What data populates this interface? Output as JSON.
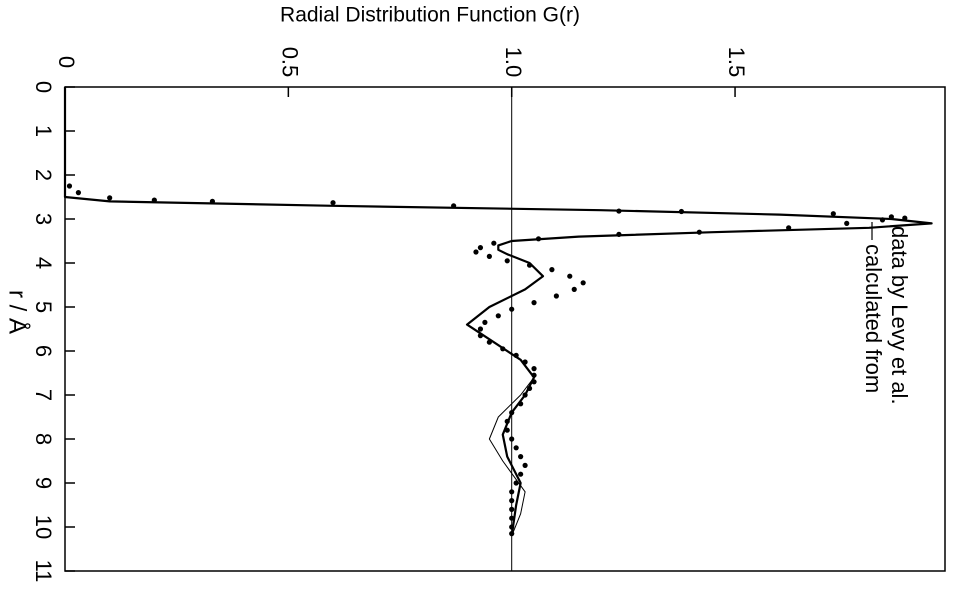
{
  "chart_data": {
    "type": "line",
    "title": "Radial Distribution Function G(r)",
    "xlabel": "r / Å",
    "annotation": [
      "calculated from",
      "data by Levy et al."
    ],
    "xlim": [
      0,
      11
    ],
    "xticks": [
      0,
      1,
      2,
      3,
      4,
      5,
      6,
      7,
      8,
      9,
      10,
      11
    ],
    "ylim": [
      0,
      1.97
    ],
    "yticks": [
      0,
      0.5,
      {
        "value": 1,
        "label": "1.0"
      },
      1.5
    ],
    "reference_line": 1,
    "series": [
      {
        "style": "line",
        "color": "#000000",
        "width": 2.2,
        "x": [
          0,
          2.5,
          2.6,
          2.7,
          2.8,
          2.9,
          3.0,
          3.1,
          3.2,
          3.3,
          3.4,
          3.5,
          3.6,
          3.7,
          3.8,
          4.0,
          4.3,
          4.6,
          5.0,
          5.4,
          5.8,
          6.2,
          6.6,
          7.0,
          7.4,
          7.9,
          8.4,
          9.0,
          9.5,
          10.2
        ],
        "values": [
          0,
          0,
          0.1,
          0.6,
          1.2,
          1.6,
          1.85,
          1.94,
          1.8,
          1.45,
          1.15,
          1.0,
          0.97,
          0.97,
          0.99,
          1.04,
          1.07,
          1.03,
          0.95,
          0.9,
          0.96,
          1.02,
          1.05,
          1.03,
          1.0,
          0.98,
          0.99,
          1.02,
          1.01,
          1.0
        ]
      },
      {
        "style": "line",
        "color": "#000000",
        "width": 1,
        "x": [
          6.6,
          7.0,
          7.5,
          8.0,
          8.5,
          9.2,
          9.7,
          10.2
        ],
        "values": [
          1.05,
          1.02,
          0.97,
          0.95,
          0.98,
          1.03,
          1.02,
          1.0
        ]
      },
      {
        "style": "dots",
        "color": "#000000",
        "x": [
          2.25,
          2.4,
          2.52,
          2.57,
          2.6,
          2.63,
          2.7,
          2.82,
          2.83,
          2.88,
          2.95,
          2.98,
          3.02,
          3.1,
          3.2,
          3.3,
          3.35,
          3.45,
          3.55,
          3.65,
          3.75,
          3.85,
          3.95,
          4.05,
          4.15,
          4.3,
          4.45,
          4.6,
          4.75,
          4.9,
          5.05,
          5.2,
          5.35,
          5.5,
          5.65,
          5.8,
          5.95,
          6.1,
          6.25,
          6.4,
          6.55,
          6.7,
          6.85,
          7.0,
          7.2,
          7.4,
          7.6,
          7.8,
          8.0,
          8.2,
          8.4,
          8.6,
          8.8,
          9.0,
          9.2,
          9.4,
          9.6,
          9.8,
          10.0,
          10.15
        ],
        "values": [
          0.01,
          0.03,
          0.1,
          0.2,
          0.33,
          0.6,
          0.87,
          1.24,
          1.38,
          1.72,
          1.85,
          1.88,
          1.83,
          1.75,
          1.62,
          1.42,
          1.24,
          1.06,
          0.96,
          0.93,
          0.92,
          0.95,
          0.99,
          1.04,
          1.09,
          1.13,
          1.16,
          1.14,
          1.1,
          1.05,
          1.0,
          0.97,
          0.94,
          0.93,
          0.93,
          0.95,
          0.98,
          1.01,
          1.03,
          1.05,
          1.05,
          1.05,
          1.04,
          1.03,
          1.02,
          1.0,
          0.99,
          0.99,
          1.0,
          1.01,
          1.02,
          1.03,
          1.02,
          1.01,
          1.0,
          1.0,
          1.0,
          1.0,
          1.0,
          1.0
        ]
      }
    ]
  }
}
